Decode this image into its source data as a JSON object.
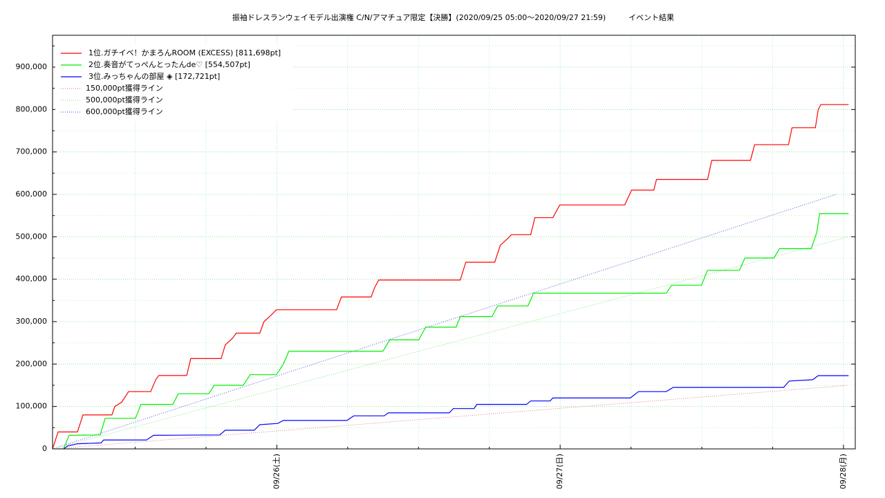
{
  "chart_data": {
    "type": "line",
    "title": "振袖ドレスランウェイモデル出演権 C/N/アマチュア限定【決勝】(2020/09/25 05:00〜2020/09/27 21:59)",
    "subtitle": "イベント結果",
    "xlim": [
      0,
      68
    ],
    "xticks": [
      {
        "value": 19,
        "label": "09/26(土)"
      },
      {
        "value": 43,
        "label": "09/27(日)"
      },
      {
        "value": 67,
        "label": "09/28(月)"
      }
    ],
    "xminor_ticks": [
      7,
      13,
      25,
      31,
      37,
      49,
      55,
      61
    ],
    "ylim": [
      0,
      975000
    ],
    "yticks": [
      {
        "value": 0,
        "label": "0"
      },
      {
        "value": 100000,
        "label": "100,000"
      },
      {
        "value": 200000,
        "label": "200,000"
      },
      {
        "value": 300000,
        "label": "300,000"
      },
      {
        "value": 400000,
        "label": "400,000"
      },
      {
        "value": 500000,
        "label": "500,000"
      },
      {
        "value": 600000,
        "label": "600,000"
      },
      {
        "value": 700000,
        "label": "700,000"
      },
      {
        "value": 800000,
        "label": "800,000"
      },
      {
        "value": 900000,
        "label": "900,000"
      }
    ],
    "yminor_ticks": [
      50000,
      150000,
      250000,
      350000,
      450000,
      550000,
      650000,
      750000,
      850000,
      950000
    ],
    "grid": true,
    "legend": "upper left",
    "series": [
      {
        "name": "1位.ガチイベ！かまろんROOM (EXCESS) [811,698pt]",
        "color": "#ff0000",
        "line_style": "solid",
        "x": [
          0,
          0.47,
          2.11,
          2.58,
          5.03,
          5.27,
          5.85,
          6.44,
          8.31,
          8.78,
          9.01,
          11.36,
          11.71,
          14.28,
          14.63,
          15.22,
          15.57,
          17.56,
          17.91,
          18.5,
          18.97,
          24.06,
          24.47,
          26.99,
          27.28,
          27.63,
          34.54,
          35.01,
          37.46,
          37.93,
          38.52,
          38.87,
          40.51,
          40.86,
          42.38,
          42.97,
          48.47,
          49.05,
          50.93,
          51.16,
          55.49,
          55.84,
          59.12,
          59.47,
          62.34,
          62.64,
          64.62,
          64.86,
          65.09,
          67.43
        ],
        "values": [
          0,
          40000,
          40000,
          80000,
          80000,
          100000,
          110000,
          135000,
          135000,
          165000,
          173000,
          173000,
          213000,
          213000,
          245000,
          260000,
          273000,
          273000,
          300000,
          315000,
          328000,
          328000,
          358000,
          358000,
          380000,
          398000,
          398000,
          440000,
          440000,
          480000,
          495000,
          505000,
          505000,
          545000,
          545000,
          575000,
          575000,
          610000,
          610000,
          635000,
          635000,
          680000,
          680000,
          717000,
          717000,
          757000,
          757000,
          800000,
          811698,
          811698
        ]
      },
      {
        "name": "2位.奏音がてっぺんとったんde♡ [554,507pt]",
        "color": "#00ee00",
        "line_style": "solid",
        "x": [
          0.94,
          1.4,
          4.04,
          4.45,
          7.02,
          7.49,
          10.19,
          10.65,
          13.23,
          13.7,
          16.16,
          16.74,
          18.97,
          19.55,
          20.02,
          27.98,
          28.57,
          31.02,
          31.61,
          34.19,
          34.54,
          37.23,
          37.7,
          40.27,
          40.74,
          51.98,
          52.45,
          54.97,
          55.49,
          58.19,
          58.65,
          61.11,
          61.58,
          64.27,
          64.74,
          64.98,
          67.43
        ],
        "values": [
          0,
          32000,
          33000,
          72000,
          72000,
          105000,
          105000,
          130000,
          130000,
          150000,
          150000,
          175000,
          175000,
          200000,
          230000,
          230000,
          257000,
          257000,
          287000,
          287000,
          312000,
          312000,
          337000,
          337000,
          367000,
          367000,
          386000,
          386000,
          421000,
          421000,
          450000,
          450000,
          472000,
          472000,
          510000,
          554507,
          554507
        ]
      },
      {
        "name": "3位.みっちゃんの部屋 ◈ [172,721pt]",
        "color": "#0000ff",
        "line_style": "solid",
        "x": [
          0.94,
          1.29,
          2.11,
          4.1,
          4.33,
          7.96,
          8.55,
          14.17,
          14.63,
          17.09,
          17.56,
          19.08,
          19.55,
          24.94,
          25.52,
          28.1,
          28.45,
          33.6,
          33.95,
          35.71,
          35.94,
          40.16,
          40.51,
          42.15,
          42.38,
          48.94,
          49.64,
          51.98,
          52.57,
          61.93,
          62.4,
          64.39,
          64.86,
          67.43
        ],
        "values": [
          0,
          7000,
          12000,
          14000,
          21000,
          21000,
          32000,
          33000,
          44000,
          44000,
          57000,
          60000,
          67000,
          67000,
          78000,
          78000,
          85000,
          85000,
          95000,
          95000,
          105000,
          105000,
          113000,
          113000,
          120000,
          120000,
          135000,
          135000,
          145000,
          145000,
          160000,
          163000,
          172721,
          172721
        ]
      },
      {
        "name": "150,000pt獲得ライン",
        "color": "#e07070",
        "line_style": "dotted",
        "x": [
          0,
          67.43
        ],
        "values": [
          0,
          150000
        ]
      },
      {
        "name": "500,000pt獲得ライン",
        "color": "#70e070",
        "line_style": "dotted",
        "x": [
          0,
          67.43
        ],
        "values": [
          0,
          500000
        ]
      },
      {
        "name": "600,000pt獲得ライン",
        "color": "#4040e0",
        "line_style": "dotted",
        "x": [
          0,
          66.38
        ],
        "values": [
          0,
          600000
        ]
      }
    ]
  }
}
